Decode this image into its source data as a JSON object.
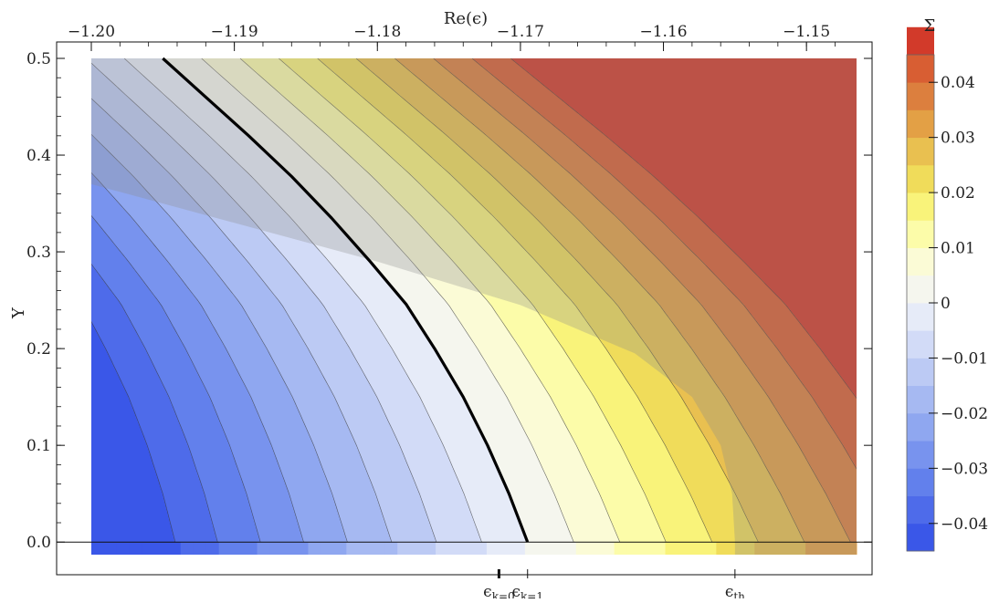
{
  "chart_data": {
    "type": "heatmap",
    "title": "",
    "xlabel": "Re(ϵ)",
    "ylabel": "Y",
    "colorbar_label": "Σ",
    "xlim": [
      -1.2,
      -1.1465
    ],
    "ylim": [
      -0.013,
      0.5
    ],
    "x_ticks": [
      -1.2,
      -1.19,
      -1.18,
      -1.17,
      -1.16,
      -1.15
    ],
    "x_tick_labels": [
      "−1.20",
      "−1.19",
      "−1.18",
      "−1.17",
      "−1.16",
      "−1.15"
    ],
    "y_ticks": [
      0.0,
      0.1,
      0.2,
      0.3,
      0.4,
      0.5
    ],
    "y_tick_labels": [
      "0.0",
      "0.1",
      "0.2",
      "0.3",
      "0.4",
      "0.5"
    ],
    "colorbar_range": [
      -0.045,
      0.045
    ],
    "colorbar_ticks": [
      -0.04,
      -0.03,
      -0.02,
      -0.01,
      0,
      0.01,
      0.02,
      0.03,
      0.04
    ],
    "colorbar_tick_labels": [
      "−0.04",
      "−0.03",
      "−0.02",
      "−0.01",
      "0",
      "0.01",
      "0.02",
      "0.03",
      "0.04"
    ],
    "contour_step": 0.005,
    "level_colors": [
      "#3a57e8",
      "#4e6bea",
      "#6280ec",
      "#7893ee",
      "#8fa7f0",
      "#a6b9f2",
      "#bccaf4",
      "#d2dbf7",
      "#e6ebf8",
      "#f5f6ee",
      "#fbfbd6",
      "#fcfca9",
      "#f9f37a",
      "#f0dc5a",
      "#e9c050",
      "#e3a045",
      "#dc7f3e",
      "#d85e33",
      "#d23a2a"
    ],
    "zero_contour": {
      "color": "#000000",
      "points": [
        {
          "x": -1.195,
          "y": 0.5
        },
        {
          "x": -1.192,
          "y": 0.46
        },
        {
          "x": -1.189,
          "y": 0.42
        },
        {
          "x": -1.186,
          "y": 0.378
        },
        {
          "x": -1.1832,
          "y": 0.335
        },
        {
          "x": -1.1805,
          "y": 0.29
        },
        {
          "x": -1.178,
          "y": 0.246
        },
        {
          "x": -1.176,
          "y": 0.2
        },
        {
          "x": -1.174,
          "y": 0.15
        },
        {
          "x": -1.1723,
          "y": 0.1
        },
        {
          "x": -1.1708,
          "y": 0.05
        },
        {
          "x": -1.1695,
          "y": 0.0
        }
      ]
    },
    "shaded_region": {
      "color": "#8c8c8c",
      "opacity": 0.3,
      "boundary": [
        {
          "x": -1.2,
          "y": 0.37
        },
        {
          "x": -1.19,
          "y": 0.33
        },
        {
          "x": -1.18,
          "y": 0.29
        },
        {
          "x": -1.17,
          "y": 0.245
        },
        {
          "x": -1.162,
          "y": 0.195
        },
        {
          "x": -1.158,
          "y": 0.15
        },
        {
          "x": -1.156,
          "y": 0.1
        },
        {
          "x": -1.1552,
          "y": 0.05
        },
        {
          "x": -1.155,
          "y": 0.0
        }
      ]
    },
    "markers": [
      {
        "name": "ϵ",
        "sub": "k=0",
        "x": -1.1715
      },
      {
        "name": "ϵ",
        "sub": "k=1",
        "x": -1.1695
      },
      {
        "name": "ϵ",
        "sub": "th",
        "x": -1.155
      }
    ]
  }
}
